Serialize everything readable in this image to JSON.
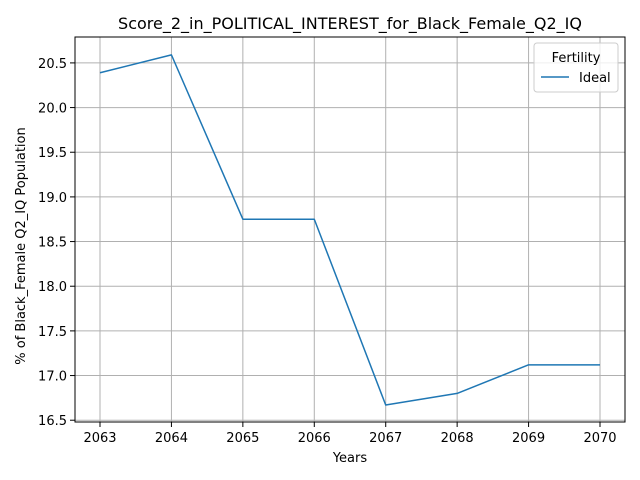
{
  "chart_data": {
    "type": "line",
    "title": "Score_2_in_POLITICAL_INTEREST_for_Black_Female_Q2_IQ",
    "xlabel": "Years",
    "ylabel": "% of Black_Female Q2_IQ Population",
    "x": [
      2063,
      2064,
      2065,
      2066,
      2067,
      2068,
      2069,
      2070
    ],
    "x_ticks": [
      "2063",
      "2064",
      "2065",
      "2066",
      "2067",
      "2068",
      "2069",
      "2070"
    ],
    "y_ticks": [
      "16.5",
      "17.0",
      "17.5",
      "18.0",
      "18.5",
      "19.0",
      "19.5",
      "20.0",
      "20.5"
    ],
    "xlim": [
      2062.65,
      2070.35
    ],
    "ylim": [
      16.48,
      20.79
    ],
    "grid": true,
    "legend": {
      "title": "Fertility",
      "position": "top-right"
    },
    "series": [
      {
        "name": "Ideal",
        "color": "#1f77b4",
        "values": [
          20.39,
          20.59,
          18.75,
          18.75,
          16.67,
          16.8,
          17.12,
          17.12
        ]
      }
    ]
  }
}
